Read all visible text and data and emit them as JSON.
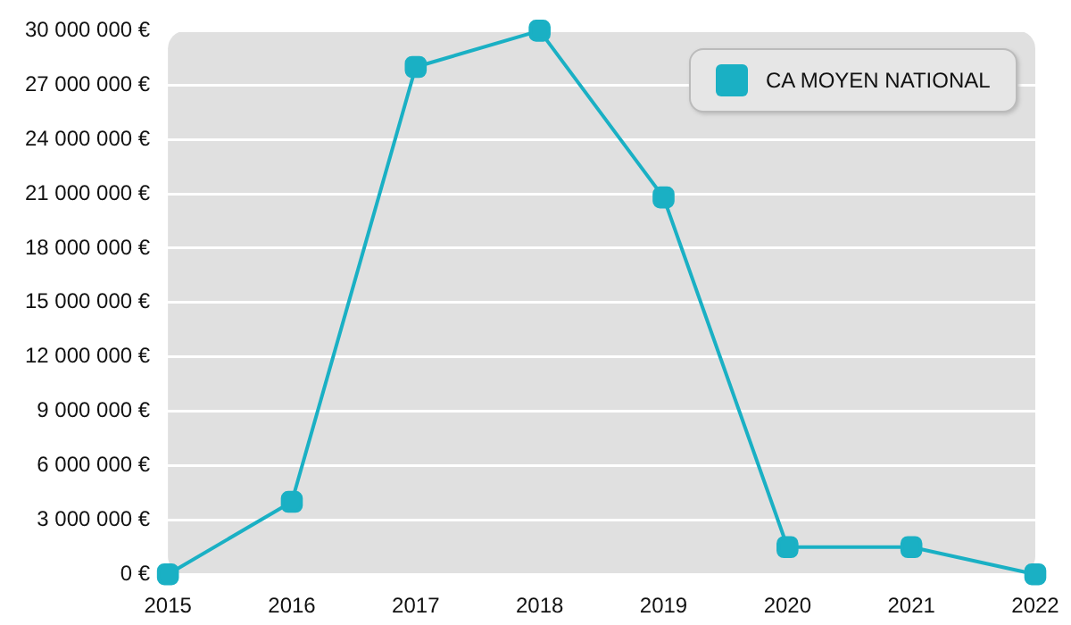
{
  "chart_data": {
    "type": "line",
    "categories": [
      "2015",
      "2016",
      "2017",
      "2018",
      "2019",
      "2020",
      "2021",
      "2022"
    ],
    "series": [
      {
        "name": "CA MOYEN NATIONAL",
        "color": "#1ab0c4",
        "values": [
          0,
          4000000,
          28000000,
          30000000,
          20800000,
          1500000,
          1500000,
          0
        ]
      }
    ],
    "ylim": [
      0,
      30000000
    ],
    "yticks": [
      {
        "value": 0,
        "label": "0 €"
      },
      {
        "value": 3000000,
        "label": "3 000 000 €"
      },
      {
        "value": 6000000,
        "label": "6 000 000 €"
      },
      {
        "value": 9000000,
        "label": "9 000 000 €"
      },
      {
        "value": 12000000,
        "label": "12 000 000 €"
      },
      {
        "value": 15000000,
        "label": "15 000 000 €"
      },
      {
        "value": 18000000,
        "label": "18 000 000 €"
      },
      {
        "value": 21000000,
        "label": "21 000 000 €"
      },
      {
        "value": 24000000,
        "label": "24 000 000 €"
      },
      {
        "value": 27000000,
        "label": "27 000 000 €"
      },
      {
        "value": 30000000,
        "label": "30 000 000 €"
      }
    ],
    "grid": "y",
    "legend": "top right",
    "marker": "square",
    "line_style": "solid"
  }
}
